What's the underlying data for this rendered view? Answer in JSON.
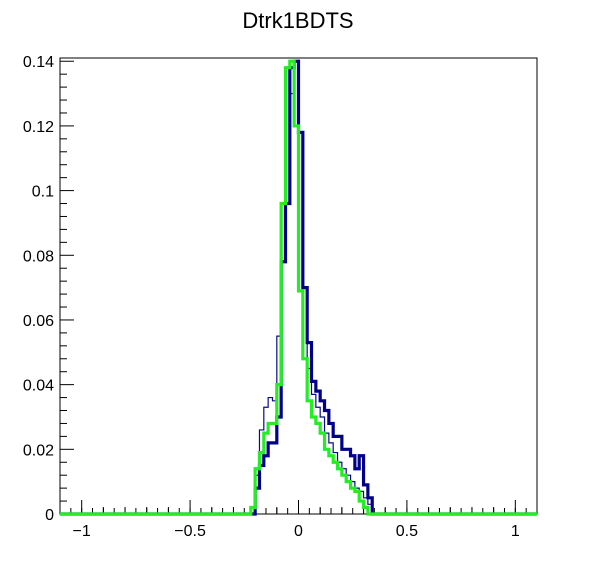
{
  "chart_data": {
    "type": "histogram",
    "title": "Dtrk1BDTS",
    "xlabel": "",
    "ylabel": "",
    "xlim": [
      -1.1,
      1.1
    ],
    "ylim": [
      0,
      0.141
    ],
    "x_ticks": [
      -1,
      -0.5,
      0,
      0.5,
      1
    ],
    "x_tick_labels": [
      "−1",
      "−0.5",
      "0",
      "0.5",
      "1"
    ],
    "y_ticks": [
      0,
      0.02,
      0.04,
      0.06,
      0.08,
      0.1,
      0.12,
      0.14
    ],
    "y_tick_labels": [
      "0",
      "0.02",
      "0.04",
      "0.06",
      "0.08",
      "0.1",
      "0.12",
      "0.14"
    ],
    "grid": false,
    "legend": "none",
    "bin_edges_range": [
      -1.1,
      1.1
    ],
    "bin_width": 0.02,
    "series": [
      {
        "style": "thin",
        "color": "#0a0a8c",
        "bins": [
          {
            "x": -0.22,
            "y": 0.0
          },
          {
            "x": -0.2,
            "y": 0.012
          },
          {
            "x": -0.18,
            "y": 0.026
          },
          {
            "x": -0.16,
            "y": 0.033
          },
          {
            "x": -0.14,
            "y": 0.036
          },
          {
            "x": -0.12,
            "y": 0.035
          },
          {
            "x": -0.1,
            "y": 0.055
          },
          {
            "x": -0.08,
            "y": 0.078
          },
          {
            "x": -0.06,
            "y": 0.096
          },
          {
            "x": -0.04,
            "y": 0.13
          },
          {
            "x": -0.02,
            "y": 0.12
          },
          {
            "x": 0.0,
            "y": 0.118
          },
          {
            "x": 0.02,
            "y": 0.07
          },
          {
            "x": 0.04,
            "y": 0.045
          },
          {
            "x": 0.06,
            "y": 0.037
          },
          {
            "x": 0.08,
            "y": 0.033
          },
          {
            "x": 0.1,
            "y": 0.03
          },
          {
            "x": 0.12,
            "y": 0.025
          },
          {
            "x": 0.14,
            "y": 0.022
          },
          {
            "x": 0.16,
            "y": 0.019
          },
          {
            "x": 0.18,
            "y": 0.016
          },
          {
            "x": 0.2,
            "y": 0.014
          },
          {
            "x": 0.22,
            "y": 0.012
          },
          {
            "x": 0.24,
            "y": 0.01
          },
          {
            "x": 0.26,
            "y": 0.008
          },
          {
            "x": 0.28,
            "y": 0.007
          },
          {
            "x": 0.3,
            "y": 0.005
          },
          {
            "x": 0.32,
            "y": 0.003
          },
          {
            "x": 0.34,
            "y": 0.0
          }
        ]
      },
      {
        "style": "thick",
        "color": "#00008b",
        "bins": [
          {
            "x": -0.22,
            "y": 0.0
          },
          {
            "x": -0.2,
            "y": 0.008
          },
          {
            "x": -0.18,
            "y": 0.015
          },
          {
            "x": -0.16,
            "y": 0.018
          },
          {
            "x": -0.14,
            "y": 0.022
          },
          {
            "x": -0.12,
            "y": 0.022
          },
          {
            "x": -0.1,
            "y": 0.03
          },
          {
            "x": -0.08,
            "y": 0.078
          },
          {
            "x": -0.06,
            "y": 0.096
          },
          {
            "x": -0.04,
            "y": 0.138
          },
          {
            "x": -0.02,
            "y": 0.14
          },
          {
            "x": 0.0,
            "y": 0.118
          },
          {
            "x": 0.02,
            "y": 0.07
          },
          {
            "x": 0.04,
            "y": 0.053
          },
          {
            "x": 0.06,
            "y": 0.041
          },
          {
            "x": 0.08,
            "y": 0.038
          },
          {
            "x": 0.1,
            "y": 0.035
          },
          {
            "x": 0.12,
            "y": 0.032
          },
          {
            "x": 0.14,
            "y": 0.028
          },
          {
            "x": 0.16,
            "y": 0.024
          },
          {
            "x": 0.18,
            "y": 0.024
          },
          {
            "x": 0.2,
            "y": 0.02
          },
          {
            "x": 0.22,
            "y": 0.02
          },
          {
            "x": 0.24,
            "y": 0.018
          },
          {
            "x": 0.26,
            "y": 0.014
          },
          {
            "x": 0.28,
            "y": 0.018
          },
          {
            "x": 0.3,
            "y": 0.009
          },
          {
            "x": 0.32,
            "y": 0.005
          },
          {
            "x": 0.34,
            "y": 0.0
          }
        ]
      },
      {
        "style": "thick",
        "color": "#22ee22",
        "bins": [
          {
            "x": -0.24,
            "y": 0.0
          },
          {
            "x": -0.22,
            "y": 0.002
          },
          {
            "x": -0.2,
            "y": 0.014
          },
          {
            "x": -0.18,
            "y": 0.019
          },
          {
            "x": -0.16,
            "y": 0.025
          },
          {
            "x": -0.14,
            "y": 0.028
          },
          {
            "x": -0.12,
            "y": 0.028
          },
          {
            "x": -0.1,
            "y": 0.04
          },
          {
            "x": -0.08,
            "y": 0.096
          },
          {
            "x": -0.06,
            "y": 0.138
          },
          {
            "x": -0.04,
            "y": 0.14
          },
          {
            "x": -0.02,
            "y": 0.12
          },
          {
            "x": 0.0,
            "y": 0.069
          },
          {
            "x": 0.02,
            "y": 0.048
          },
          {
            "x": 0.04,
            "y": 0.035
          },
          {
            "x": 0.06,
            "y": 0.03
          },
          {
            "x": 0.08,
            "y": 0.028
          },
          {
            "x": 0.1,
            "y": 0.025
          },
          {
            "x": 0.12,
            "y": 0.02
          },
          {
            "x": 0.14,
            "y": 0.018
          },
          {
            "x": 0.16,
            "y": 0.016
          },
          {
            "x": 0.18,
            "y": 0.014
          },
          {
            "x": 0.2,
            "y": 0.012
          },
          {
            "x": 0.22,
            "y": 0.01
          },
          {
            "x": 0.24,
            "y": 0.008
          },
          {
            "x": 0.26,
            "y": 0.007
          },
          {
            "x": 0.28,
            "y": 0.004
          },
          {
            "x": 0.3,
            "y": 0.002
          },
          {
            "x": 0.32,
            "y": 0.0
          }
        ]
      }
    ]
  }
}
